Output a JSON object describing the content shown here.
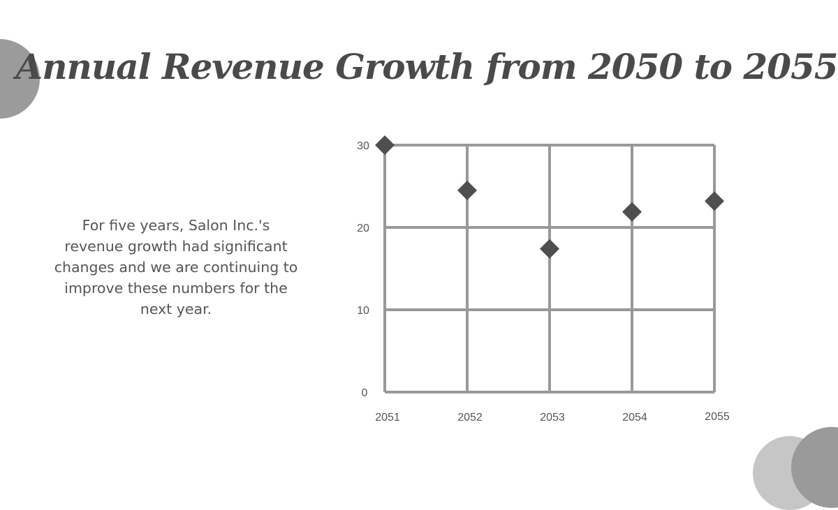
{
  "title": "Annual Revenue Growth from 2050 to 2055",
  "description": "For five years, Salon Inc.'s revenue growth had significant changes and we are continuing to improve these numbers for the next year.",
  "colors": {
    "grid": "#999999",
    "marker": "#4f4f4f",
    "text": "#4a4a4a",
    "decor_dark": "#9a9a9a",
    "decor_light": "#c6c6c6"
  },
  "chart_data": {
    "type": "scatter",
    "marker": "diamond",
    "categories": [
      "2051",
      "2052",
      "2053",
      "2054",
      "2055"
    ],
    "values": [
      30,
      24.5,
      17.4,
      21.9,
      23.2
    ],
    "ylim": [
      0,
      30
    ],
    "yticks": [
      "0",
      "10",
      "20",
      "30"
    ],
    "grid": true,
    "xlabel": "",
    "ylabel": ""
  }
}
